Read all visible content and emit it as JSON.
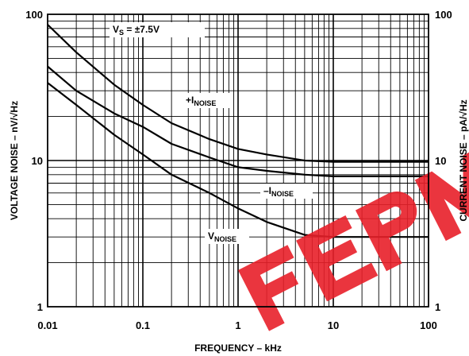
{
  "chart_data": {
    "type": "line",
    "title": "",
    "xlabel": "FREQUENCY – kHz",
    "ylabel_left": "VOLTAGE NOISE – nV/√Hz",
    "ylabel_right": "CURRENT NOISE – pA/√Hz",
    "x_scale": "log",
    "y_scale": "log",
    "xlim": [
      0.01,
      100
    ],
    "ylim": [
      1,
      100
    ],
    "grid": true,
    "x_ticks": [
      "0.01",
      "0.1",
      "1",
      "10",
      "100"
    ],
    "y_ticks": [
      "1",
      "10",
      "100"
    ],
    "y_ticks_right": [
      "1",
      "10",
      "100"
    ],
    "condition": {
      "main": "V",
      "sub": "S",
      "rest": " = ±7.5V"
    },
    "series": [
      {
        "key": "plus_i_noise",
        "label_main": "+I",
        "label_sub": "NOISE",
        "x": [
          0.01,
          0.02,
          0.05,
          0.1,
          0.2,
          0.5,
          1,
          2,
          5,
          10,
          20,
          50,
          100
        ],
        "y": [
          85,
          55,
          33,
          24,
          18,
          14,
          12,
          11,
          10,
          9.8,
          9.8,
          9.8,
          9.8
        ]
      },
      {
        "key": "minus_i_noise",
        "label_main": "–I",
        "label_sub": "NOISE",
        "x": [
          0.01,
          0.02,
          0.05,
          0.1,
          0.2,
          0.5,
          1,
          2,
          5,
          10,
          20,
          50,
          100
        ],
        "y": [
          44,
          30,
          21,
          17,
          13,
          10.5,
          9,
          8.5,
          8,
          7.8,
          7.8,
          7.8,
          7.8
        ]
      },
      {
        "key": "v_noise",
        "label_main": "V",
        "label_sub": "NOISE",
        "x": [
          0.01,
          0.02,
          0.05,
          0.1,
          0.2,
          0.5,
          1,
          2,
          5,
          10,
          20,
          50,
          100
        ],
        "y": [
          34,
          24,
          15,
          11,
          8,
          6,
          4.7,
          3.8,
          3.1,
          3.0,
          3.0,
          3.0,
          3.0
        ]
      }
    ]
  },
  "watermark": {
    "text": "FEPM",
    "color": "#e8202a"
  }
}
